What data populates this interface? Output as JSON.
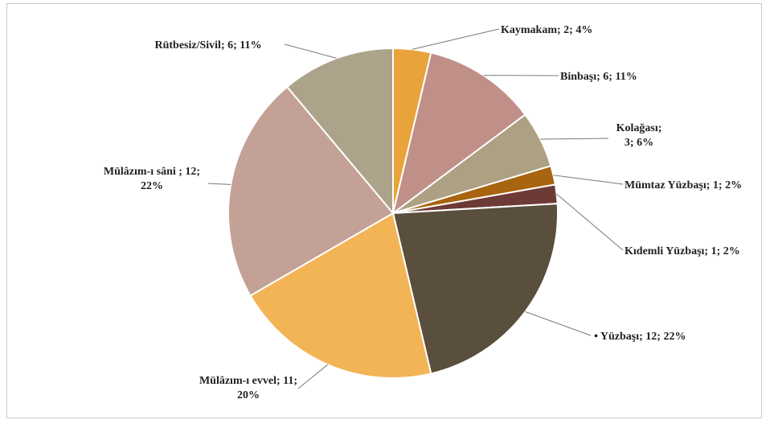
{
  "chart_data": {
    "type": "pie",
    "title": "",
    "slices": [
      {
        "name": "Kaymakam",
        "value": 2,
        "percent": "4%",
        "color": "#E8A43A",
        "label": [
          "Kaymakam; 2; 4%"
        ]
      },
      {
        "name": "Binbaşı",
        "value": 6,
        "percent": "11%",
        "color": "#C09088",
        "label": [
          "Binbaşı; 6; 11%"
        ]
      },
      {
        "name": "Kolağası",
        "value": 3,
        "percent": "6%",
        "color": "#ADA083",
        "label": [
          "Kolağası;",
          "3; 6%"
        ]
      },
      {
        "name": "Mümtaz Yüzbaşı",
        "value": 1,
        "percent": "2%",
        "color": "#A8640F",
        "label": [
          "Mümtaz Yüzbaşı; 1; 2%"
        ]
      },
      {
        "name": "Kıdemli Yüzbaşı",
        "value": 1,
        "percent": "2%",
        "color": "#6E3A35",
        "label": [
          "Kıdemli Yüzbaşı; 1; 2%"
        ]
      },
      {
        "name": "Yüzbaşı",
        "value": 12,
        "percent": "22%",
        "color": "#5A4E3C",
        "label": [
          "• Yüzbaşı; 12; 22%"
        ]
      },
      {
        "name": "Mülâzım-ı evvel",
        "value": 11,
        "percent": "20%",
        "color": "#F2B455",
        "label": [
          "Mülâzım-ı evvel; 11;",
          "20%"
        ]
      },
      {
        "name": "Mülâzım-ı sâni",
        "value": 12,
        "percent": "22%",
        "color": "#C4A197",
        "label": [
          "Mülâzım-ı sâni ; 12;",
          "22%"
        ]
      },
      {
        "name": "Rütbesiz/Sivil",
        "value": 6,
        "percent": "11%",
        "color": "#ADA38B",
        "label": [
          "Rütbesiz/Sivil; 6; 11%"
        ]
      }
    ]
  }
}
